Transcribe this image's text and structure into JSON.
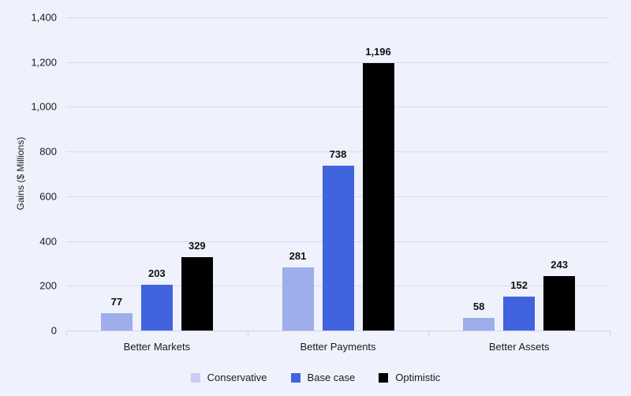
{
  "chart_data": {
    "type": "bar",
    "title": "",
    "xlabel": "",
    "ylabel": "Gains ($ Millions)",
    "ylim": [
      0,
      1400
    ],
    "yticks": [
      0,
      200,
      400,
      600,
      800,
      1000,
      1200,
      1400
    ],
    "ytick_labels": [
      "0",
      "200",
      "400",
      "600",
      "800",
      "1,000",
      "1,200",
      "1,400"
    ],
    "grid": true,
    "legend_position": "bottom",
    "categories": [
      "Better Markets",
      "Better Payments",
      "Better Assets"
    ],
    "series": [
      {
        "name": "Conservative",
        "color": "#9daeeb",
        "values": [
          77,
          281,
          58
        ],
        "labels": [
          "77",
          "281",
          "58"
        ]
      },
      {
        "name": "Base case",
        "color": "#4163de",
        "values": [
          203,
          738,
          152
        ],
        "labels": [
          "203",
          "738",
          "152"
        ]
      },
      {
        "name": "Optimistic",
        "color": "#000000",
        "values": [
          329,
          1196,
          243
        ],
        "labels": [
          "329",
          "1,196",
          "243"
        ]
      }
    ]
  },
  "legend": {
    "items": [
      {
        "label": "Conservative",
        "color": "#c9cdf0"
      },
      {
        "label": "Base case",
        "color": "#4163de"
      },
      {
        "label": "Optimistic",
        "color": "#000000"
      }
    ]
  }
}
